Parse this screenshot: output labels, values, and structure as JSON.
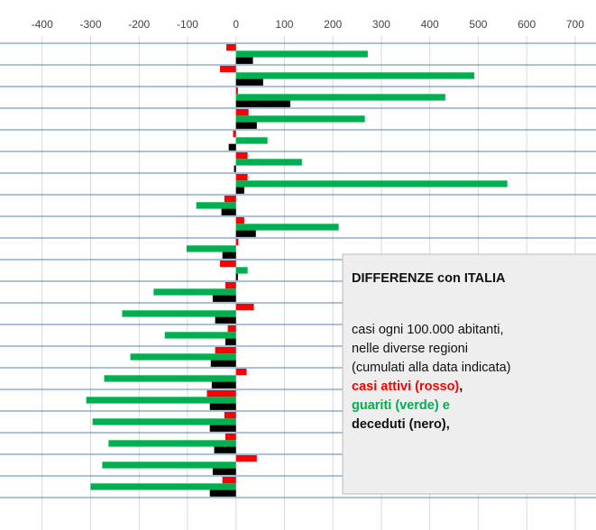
{
  "chart_data": {
    "type": "bar",
    "orientation": "horizontal",
    "categories": [
      null,
      null,
      null,
      null,
      null,
      null,
      null,
      null,
      null,
      null,
      null,
      null,
      null,
      null,
      null,
      null,
      null,
      null,
      null,
      null,
      null
    ],
    "series": [
      {
        "name": "casi attivi (rosso)",
        "color": "#ff0000",
        "values": [
          -20,
          -33,
          4,
          26,
          -6,
          24,
          24,
          -24,
          17,
          5,
          -33,
          -22,
          37,
          -17,
          -43,
          22,
          -60,
          -24,
          -22,
          43,
          -28
        ]
      },
      {
        "name": "guariti (verde)",
        "color": "#00b050",
        "values": [
          272,
          492,
          432,
          266,
          65,
          136,
          560,
          -82,
          212,
          -102,
          24,
          -170,
          -235,
          -147,
          -218,
          -272,
          -309,
          -296,
          -263,
          -276,
          -300
        ]
      },
      {
        "name": "deceduti (nero)",
        "color": "#000000",
        "values": [
          35,
          56,
          112,
          43,
          -15,
          -4,
          17,
          -30,
          41,
          -28,
          4,
          -48,
          -43,
          -22,
          -52,
          -50,
          -54,
          -54,
          -45,
          -48,
          -54
        ]
      }
    ],
    "xlim": [
      -487,
      743
    ],
    "xticks": [
      -400,
      -300,
      -200,
      -100,
      0,
      100,
      200,
      300,
      400,
      500,
      600,
      700
    ],
    "grid": true,
    "annotation": {
      "title": "DIFFERENZE con ITALIA",
      "lines": [
        "casi ogni 100.000 abitanti,",
        "nelle diverse regioni",
        "(cumulati alla data indicata)"
      ],
      "legend_suffixes": [
        ",",
        " e",
        ","
      ]
    }
  }
}
